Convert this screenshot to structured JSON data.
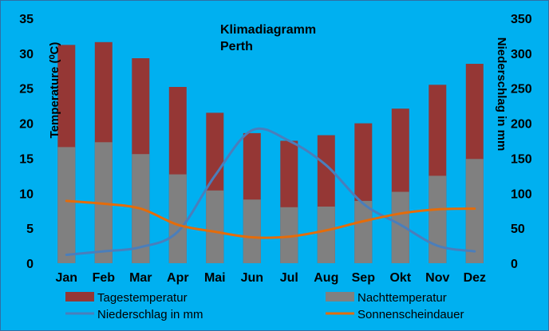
{
  "chart_data": {
    "type": "bar",
    "title": "Klimadiagramm",
    "subtitle": "Perth",
    "ylabel": "Temperature (⁰C)",
    "y2label": "Niederschlag in mm",
    "ylim": [
      0,
      35
    ],
    "y2lim": [
      0,
      350
    ],
    "yticks": [
      "0",
      "5",
      "10",
      "15",
      "20",
      "25",
      "30",
      "35"
    ],
    "y2ticks": [
      "0",
      "50",
      "100",
      "150",
      "200",
      "250",
      "300",
      "350"
    ],
    "categories": [
      "Jan",
      "Feb",
      "Mar",
      "Apr",
      "Mai",
      "Jun",
      "Jul",
      "Aug",
      "Sep",
      "Okt",
      "Nov",
      "Dez"
    ],
    "series": [
      {
        "name": "Tagestemperatur",
        "kind": "bar",
        "axis": "left",
        "color": "#953735",
        "values": [
          31.2,
          31.6,
          29.3,
          25.2,
          21.5,
          18.6,
          17.5,
          18.3,
          20.0,
          22.1,
          25.5,
          28.5
        ]
      },
      {
        "name": "Nachttemperatur",
        "kind": "bar",
        "axis": "left",
        "color": "#808080",
        "values": [
          16.6,
          17.3,
          15.6,
          12.7,
          10.4,
          9.1,
          8.0,
          8.1,
          8.9,
          10.2,
          12.5,
          14.9
        ]
      },
      {
        "name": "Niederschlag in mm",
        "kind": "line",
        "axis": "right",
        "color": "#4a7ebb",
        "values": [
          12,
          17,
          23,
          45,
          125,
          190,
          175,
          140,
          85,
          55,
          25,
          17
        ]
      },
      {
        "name": "Sonnenscheindauer",
        "kind": "line",
        "axis": "left",
        "color": "#e46c0a",
        "values": [
          8.9,
          8.5,
          7.8,
          5.5,
          4.5,
          3.7,
          3.8,
          4.7,
          6.0,
          7.1,
          7.7,
          7.8
        ]
      }
    ],
    "grid": false,
    "legend": "bottom",
    "background": "#00b0f0"
  }
}
